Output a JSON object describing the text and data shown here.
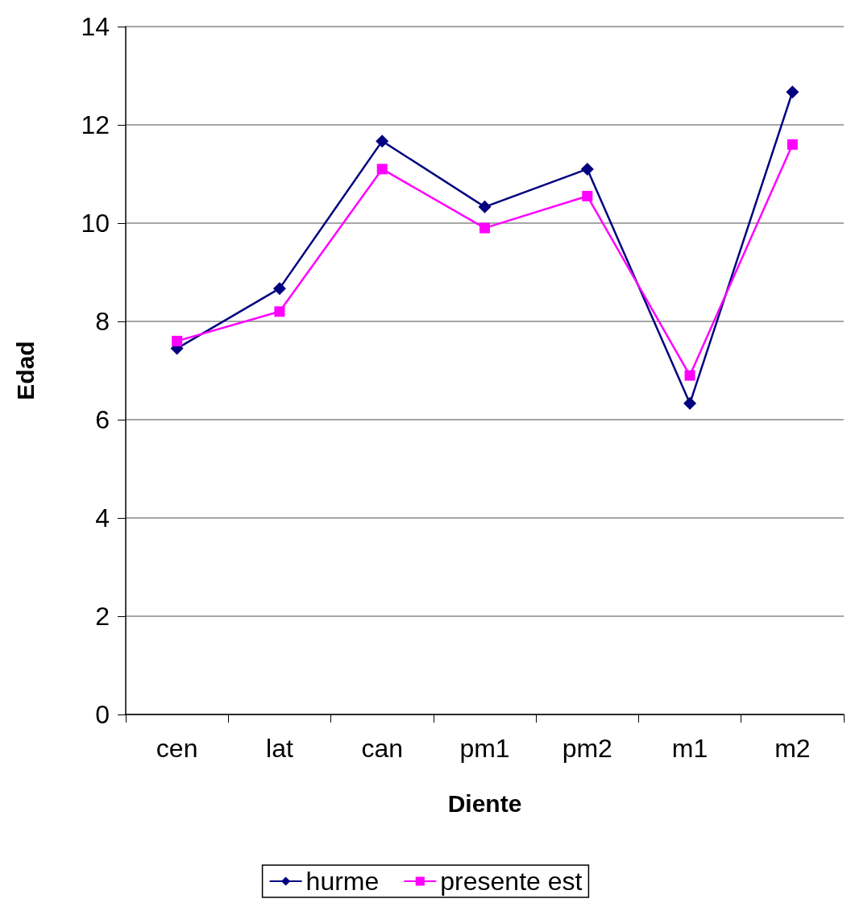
{
  "chart_data": {
    "type": "line",
    "xlabel": "Diente",
    "ylabel": "Edad",
    "categories": [
      "cen",
      "lat",
      "can",
      "pm1",
      "pm2",
      "m1",
      "m2"
    ],
    "series": [
      {
        "name": "hurme",
        "color": "#000080",
        "marker": "diamond",
        "values": [
          7.45,
          8.67,
          11.67,
          10.33,
          11.1,
          6.33,
          12.67
        ]
      },
      {
        "name": "presente est",
        "color": "#ff00ff",
        "marker": "square",
        "values": [
          7.6,
          8.2,
          11.1,
          9.9,
          10.55,
          6.9,
          11.6
        ]
      }
    ],
    "ylim": [
      0,
      14
    ],
    "yticks": [
      0,
      2,
      4,
      6,
      8,
      10,
      12,
      14
    ],
    "grid": "y",
    "legend": "bottom",
    "line_style": "solid"
  }
}
